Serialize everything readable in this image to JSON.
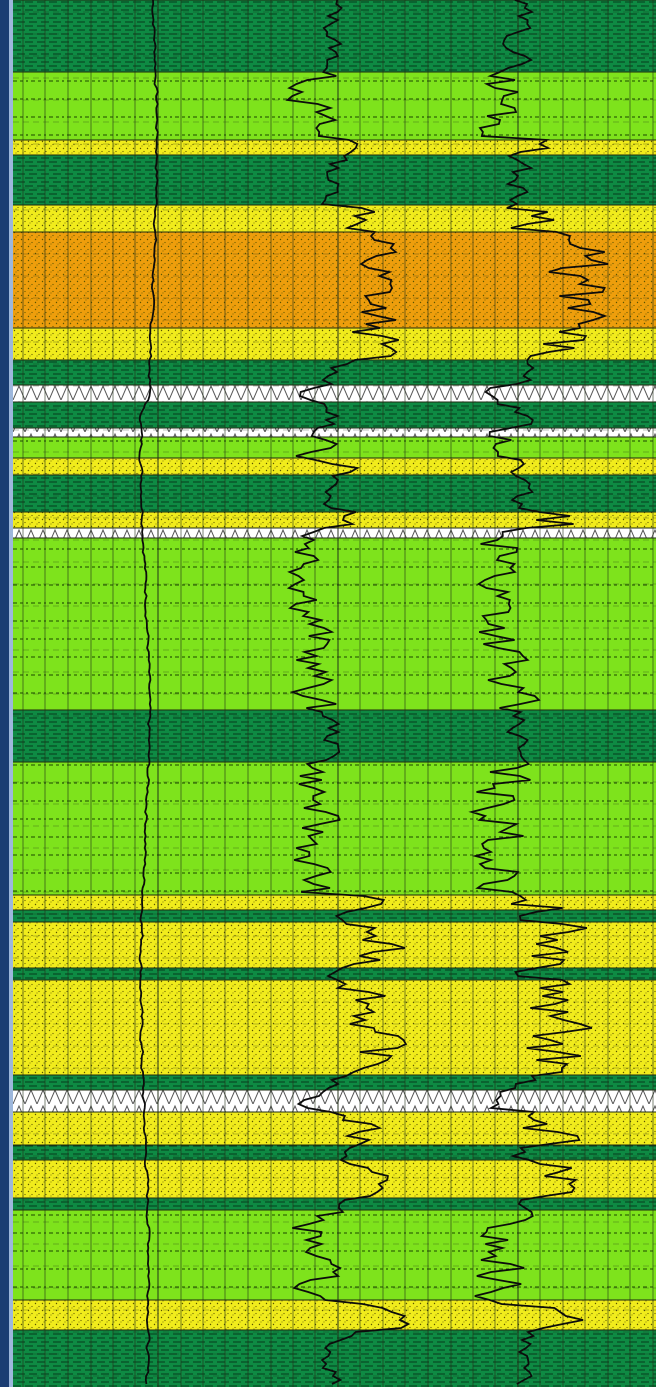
{
  "log_panel": {
    "lithology_colors": {
      "shale": "#0e8a43",
      "silty_shale": "#7ee31c",
      "sand": "#f1ec1c",
      "oil_sand": "#ee9e0c",
      "tight_streak": "#ffffff"
    },
    "layers": [
      {
        "type": "shale",
        "from": 0,
        "to": 72
      },
      {
        "type": "silty_shale",
        "from": 72,
        "to": 140
      },
      {
        "type": "sand",
        "from": 140,
        "to": 155
      },
      {
        "type": "shale",
        "from": 155,
        "to": 205
      },
      {
        "type": "sand",
        "from": 205,
        "to": 232
      },
      {
        "type": "oil_sand",
        "from": 232,
        "to": 328
      },
      {
        "type": "sand",
        "from": 328,
        "to": 360
      },
      {
        "type": "shale",
        "from": 360,
        "to": 385
      },
      {
        "type": "tight_streak",
        "from": 385,
        "to": 402
      },
      {
        "type": "shale",
        "from": 402,
        "to": 428
      },
      {
        "type": "tight_streak",
        "from": 428,
        "to": 437
      },
      {
        "type": "silty_shale",
        "from": 437,
        "to": 458
      },
      {
        "type": "sand",
        "from": 458,
        "to": 475
      },
      {
        "type": "shale",
        "from": 475,
        "to": 512
      },
      {
        "type": "sand",
        "from": 512,
        "to": 528
      },
      {
        "type": "tight_streak",
        "from": 528,
        "to": 538
      },
      {
        "type": "silty_shale",
        "from": 538,
        "to": 710
      },
      {
        "type": "shale",
        "from": 710,
        "to": 762
      },
      {
        "type": "silty_shale",
        "from": 762,
        "to": 895
      },
      {
        "type": "sand",
        "from": 895,
        "to": 910
      },
      {
        "type": "shale",
        "from": 910,
        "to": 922
      },
      {
        "type": "sand",
        "from": 922,
        "to": 968
      },
      {
        "type": "shale",
        "from": 968,
        "to": 980
      },
      {
        "type": "sand",
        "from": 980,
        "to": 1075
      },
      {
        "type": "shale",
        "from": 1075,
        "to": 1090
      },
      {
        "type": "tight_streak",
        "from": 1090,
        "to": 1112
      },
      {
        "type": "sand",
        "from": 1112,
        "to": 1145
      },
      {
        "type": "shale",
        "from": 1145,
        "to": 1160
      },
      {
        "type": "sand",
        "from": 1160,
        "to": 1198
      },
      {
        "type": "shale",
        "from": 1198,
        "to": 1210
      },
      {
        "type": "silty_shale",
        "from": 1210,
        "to": 1300
      },
      {
        "type": "sand",
        "from": 1300,
        "to": 1330
      },
      {
        "type": "shale",
        "from": 1330,
        "to": 1387
      }
    ]
  }
}
